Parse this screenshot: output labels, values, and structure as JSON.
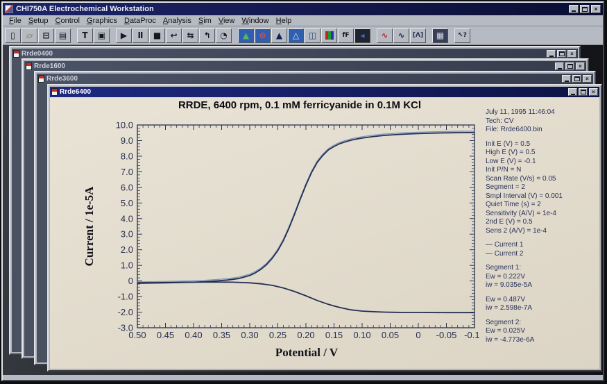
{
  "app": {
    "title": "CHI750A Electrochemical Workstation",
    "close_glyph": "×"
  },
  "menu": {
    "items": [
      "File",
      "Setup",
      "Control",
      "Graphics",
      "DataProc",
      "Analysis",
      "Sim",
      "View",
      "Window",
      "Help"
    ]
  },
  "toolbar": {
    "buttons": [
      {
        "name": "new-file",
        "glyph": "▯",
        "fg": "#17181c",
        "bg": ""
      },
      {
        "name": "open-file",
        "glyph": "▱",
        "fg": "#8a6d00",
        "bg": ""
      },
      {
        "name": "save-file",
        "glyph": "⊟",
        "fg": "#17181c",
        "bg": ""
      },
      {
        "name": "print",
        "glyph": "▤",
        "fg": "#17181c",
        "bg": ""
      },
      {
        "name": "cell-control",
        "glyph": "T",
        "fg": "#17181c",
        "bg": ""
      },
      {
        "name": "parameters-page",
        "glyph": "▣",
        "fg": "#17181c",
        "bg": ""
      },
      {
        "name": "run-experiment",
        "glyph": "▶",
        "fg": "#17181c",
        "bg": ""
      },
      {
        "name": "pause-experiment",
        "glyph": "Ⅱ",
        "fg": "#17181c",
        "bg": ""
      },
      {
        "name": "stop-experiment",
        "glyph": "■",
        "fg": "#17181c",
        "bg": ""
      },
      {
        "name": "reverse-scan",
        "glyph": "↩",
        "fg": "#17181c",
        "bg": ""
      },
      {
        "name": "repeat-run",
        "glyph": "⇆",
        "fg": "#17181c",
        "bg": ""
      },
      {
        "name": "step-run",
        "glyph": "↰",
        "fg": "#17181c",
        "bg": ""
      },
      {
        "name": "rotation-timer",
        "glyph": "◔",
        "fg": "#17181c",
        "bg": ""
      },
      {
        "name": "plot-graph",
        "glyph": "▲",
        "fg": "#53b56a",
        "bg": "#2f5fae"
      },
      {
        "name": "zoom-plot",
        "glyph": "⊙",
        "fg": "#e05050",
        "bg": "#2f5fae"
      },
      {
        "name": "peak-analysis",
        "glyph": "▲",
        "fg": "#13224e",
        "bg": ""
      },
      {
        "name": "peak-analysis-alt",
        "glyph": "△",
        "fg": "#d6e4ff",
        "bg": "#2f5fae"
      },
      {
        "name": "save-plot",
        "glyph": "◫",
        "fg": "#24407a",
        "bg": ""
      },
      {
        "name": "color-bars",
        "glyph": "",
        "fg": "",
        "bg": ""
      },
      {
        "name": "font-format",
        "glyph": "fF",
        "fg": "#17181c",
        "bg": ""
      },
      {
        "name": "data-reader",
        "glyph": "◂",
        "fg": "#3f68c8",
        "bg": "#20242f"
      },
      {
        "name": "smooth-wave",
        "glyph": "∿",
        "fg": "#b23030",
        "bg": ""
      },
      {
        "name": "derivative-wave",
        "glyph": "∿",
        "fg": "#222c4e",
        "bg": ""
      },
      {
        "name": "multi-peak",
        "glyph": "[Λ]",
        "fg": "#222c4e",
        "bg": ""
      },
      {
        "name": "data-grid",
        "glyph": "▦",
        "fg": "#cfd4de",
        "bg": "#363e58"
      },
      {
        "name": "context-help",
        "glyph": "↖?",
        "fg": "#17181c",
        "bg": ""
      }
    ]
  },
  "windows": [
    {
      "title": "Rrde0400"
    },
    {
      "title": "Rrde1600"
    },
    {
      "title": "Rrde3600"
    },
    {
      "title": "Rrde6400"
    }
  ],
  "info_panel": {
    "lines": [
      "July 11, 1995   11:46:04",
      "Tech: CV",
      "File: Rrde6400.bin",
      "",
      "Init E (V) = 0.5",
      "High E (V) = 0.5",
      "Low E (V) = -0.1",
      "Init P/N = N",
      "Scan Rate (V/s) = 0.05",
      "Segment = 2",
      "Smpl Interval (V) = 0.001",
      "Quiet Time (s) = 2",
      "Sensitivity (A/V) = 1e-4",
      "2nd E (V) = 0.5",
      "Sens 2 (A/V) = 1e-4",
      "",
      "— Current 1",
      "— Current 2",
      "",
      "Segment 1:",
      "Ew = 0.222V",
      "iw = 9.035e-5A",
      "",
      "Ew = 0.487V",
      "iw = 2.598e-7A",
      "",
      "Segment 2:",
      "Ew = 0.025V",
      "iw = -4.773e-6A"
    ]
  },
  "chart_data": {
    "type": "line",
    "title": "RRDE, 6400 rpm, 0.1 mM ferricyanide in 0.1M KCl",
    "xlabel": "Potential / V",
    "ylabel": "Current / 1e-5A",
    "xlim": [
      0.5,
      -0.1
    ],
    "ylim": [
      -3.0,
      10.0
    ],
    "x_axis_reversed": true,
    "grid": false,
    "legend_position": "right",
    "legend": [
      "Current 1",
      "Current 2"
    ],
    "x_ticks": [
      0.5,
      0.45,
      0.4,
      0.35,
      0.3,
      0.25,
      0.2,
      0.15,
      0.1,
      0.05,
      0,
      -0.05,
      -0.1
    ],
    "x_tick_labels": [
      "0.50",
      "0.45",
      "0.40",
      "0.35",
      "0.30",
      "0.25",
      "0.20",
      "0.15",
      "0.10",
      "0.05",
      "0",
      "-0.05",
      "-0.10"
    ],
    "y_ticks": [
      10,
      9,
      8,
      7,
      6,
      5,
      4,
      3,
      2,
      1,
      0,
      -1,
      -2,
      -3
    ],
    "y_tick_labels": [
      "10.0",
      "9.0",
      "8.0",
      "7.0",
      "6.0",
      "5.0",
      "4.0",
      "3.0",
      "2.0",
      "1.0",
      "0",
      "-1.0",
      "-2.0",
      "-3.0"
    ],
    "units_note": "current values in 1e-5 A",
    "series": [
      {
        "name": "Current 1",
        "color": "#232e52",
        "x": [
          0.5,
          0.45,
          0.4,
          0.38,
          0.36,
          0.34,
          0.32,
          0.3,
          0.29,
          0.28,
          0.27,
          0.26,
          0.25,
          0.24,
          0.23,
          0.22,
          0.21,
          0.2,
          0.19,
          0.18,
          0.17,
          0.16,
          0.15,
          0.14,
          0.13,
          0.12,
          0.11,
          0.1,
          0.08,
          0.06,
          0.04,
          0.02,
          0.0,
          -0.02,
          -0.04,
          -0.06,
          -0.08,
          -0.1
        ],
        "y": [
          -0.15,
          -0.12,
          -0.08,
          -0.05,
          0.0,
          0.06,
          0.15,
          0.35,
          0.52,
          0.75,
          1.05,
          1.45,
          1.95,
          2.6,
          3.4,
          4.3,
          5.25,
          6.15,
          6.95,
          7.6,
          8.05,
          8.4,
          8.62,
          8.8,
          8.92,
          9.02,
          9.1,
          9.16,
          9.26,
          9.33,
          9.38,
          9.42,
          9.45,
          9.47,
          9.49,
          9.5,
          9.51,
          9.52
        ]
      },
      {
        "name": "Current 2",
        "color": "#232e52",
        "x": [
          0.5,
          0.45,
          0.4,
          0.36,
          0.33,
          0.3,
          0.28,
          0.26,
          0.24,
          0.22,
          0.2,
          0.18,
          0.16,
          0.15,
          0.14,
          0.12,
          0.1,
          0.08,
          0.06,
          0.04,
          0.02,
          0.0,
          -0.05,
          -0.1
        ],
        "y": [
          -0.12,
          -0.1,
          -0.08,
          -0.07,
          -0.08,
          -0.12,
          -0.18,
          -0.28,
          -0.45,
          -0.68,
          -0.95,
          -1.25,
          -1.5,
          -1.6,
          -1.7,
          -1.85,
          -1.93,
          -1.97,
          -2.0,
          -2.01,
          -2.02,
          -2.02,
          -2.03,
          -2.03
        ]
      }
    ]
  }
}
